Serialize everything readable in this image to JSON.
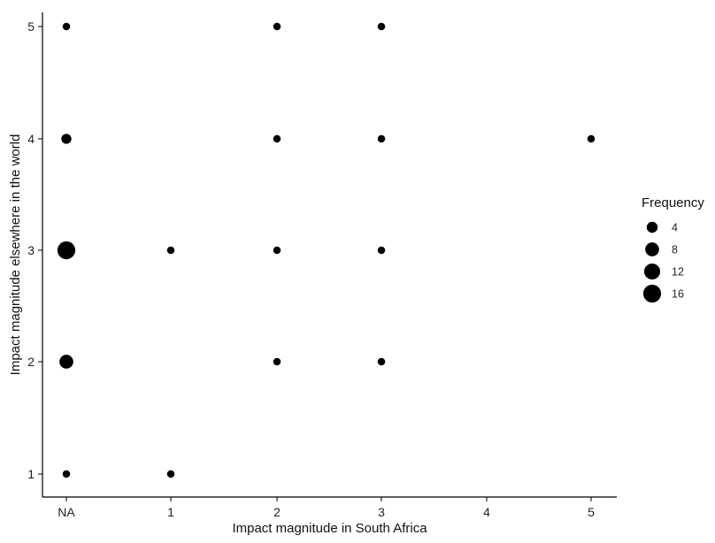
{
  "chart_data": {
    "type": "scatter",
    "title": "",
    "xlabel": "Impact magnitude in South Africa",
    "ylabel": "Impact magnitude elsewhere in the world",
    "x_categories": [
      "NA",
      "1",
      "2",
      "3",
      "4",
      "5"
    ],
    "y_ticks": [
      "1",
      "2",
      "3",
      "4",
      "5"
    ],
    "ylim": [
      1,
      5
    ],
    "grid": false,
    "legend": {
      "title": "Frequency",
      "placement": "right",
      "entries": [
        {
          "label": "4",
          "size": 4
        },
        {
          "label": "8",
          "size": 8
        },
        {
          "label": "12",
          "size": 12
        },
        {
          "label": "16",
          "size": 16
        }
      ]
    },
    "points": [
      {
        "x": "NA",
        "y": 5,
        "frequency": 1
      },
      {
        "x": "NA",
        "y": 4,
        "frequency": 3
      },
      {
        "x": "NA",
        "y": 3,
        "frequency": 16
      },
      {
        "x": "NA",
        "y": 2,
        "frequency": 8
      },
      {
        "x": "NA",
        "y": 1,
        "frequency": 1
      },
      {
        "x": "1",
        "y": 3,
        "frequency": 1
      },
      {
        "x": "1",
        "y": 1,
        "frequency": 1
      },
      {
        "x": "2",
        "y": 5,
        "frequency": 1
      },
      {
        "x": "2",
        "y": 4,
        "frequency": 1
      },
      {
        "x": "2",
        "y": 3,
        "frequency": 1
      },
      {
        "x": "2",
        "y": 2,
        "frequency": 1
      },
      {
        "x": "3",
        "y": 5,
        "frequency": 1
      },
      {
        "x": "3",
        "y": 4,
        "frequency": 1
      },
      {
        "x": "3",
        "y": 3,
        "frequency": 1
      },
      {
        "x": "3",
        "y": 2,
        "frequency": 1
      },
      {
        "x": "5",
        "y": 4,
        "frequency": 1
      }
    ],
    "colors": {
      "point": "#000000",
      "axis": "#000000"
    }
  }
}
